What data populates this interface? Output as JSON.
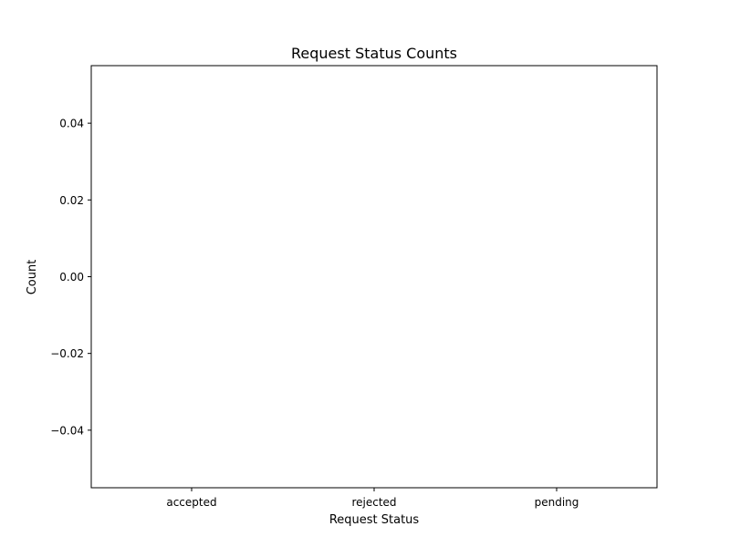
{
  "chart_data": {
    "type": "bar",
    "title": "Request Status Counts",
    "xlabel": "Request Status",
    "ylabel": "Count",
    "categories": [
      "accepted",
      "rejected",
      "pending"
    ],
    "values": [
      0,
      0,
      0
    ],
    "ylim": [
      -0.055,
      0.055
    ],
    "yticks": [
      0.04,
      0.02,
      0.0,
      -0.02,
      -0.04
    ],
    "ytick_labels": [
      "0.04",
      "0.02",
      "0.00",
      "−0.02",
      "−0.04"
    ],
    "grid": false,
    "legend": "none",
    "colors": {
      "axes": "#000000",
      "background": "#ffffff",
      "bar": "#1f77b4"
    }
  }
}
